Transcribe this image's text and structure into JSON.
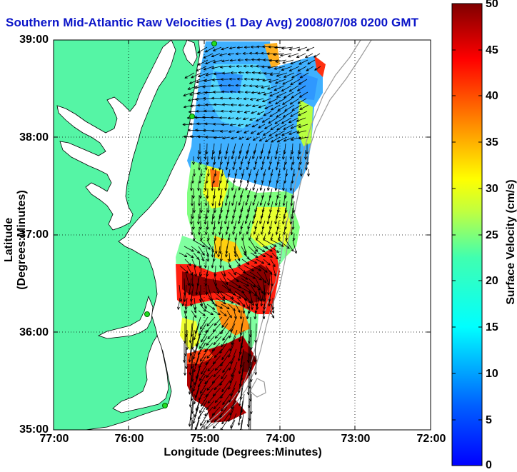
{
  "header": {
    "title": "Southern Mid-Atlantic Raw Velocities (1 Day Avg) 2008/07/08 0200 GMT"
  },
  "map": {
    "x_axis": {
      "label": "Longitude (Degrees:Minutes)",
      "ticks": [
        "77:00",
        "76:00",
        "75:00",
        "74:00",
        "73:00",
        "72:00"
      ]
    },
    "y_axis": {
      "label": "Latitude (Degrees:Minutes)",
      "ticks": [
        "39:00",
        "38:00",
        "37:00",
        "36:00",
        "35:00"
      ]
    },
    "grid": true,
    "land_color": "#55f5a5",
    "water_color": "#ffffff"
  },
  "colorbar": {
    "label": "Surface Velocity (cm/s)",
    "range": [
      0,
      50
    ],
    "ticks": [
      "50",
      "45",
      "40",
      "35",
      "30",
      "25",
      "20",
      "15",
      "10",
      "5",
      "0"
    ],
    "colormap": "jet"
  }
}
